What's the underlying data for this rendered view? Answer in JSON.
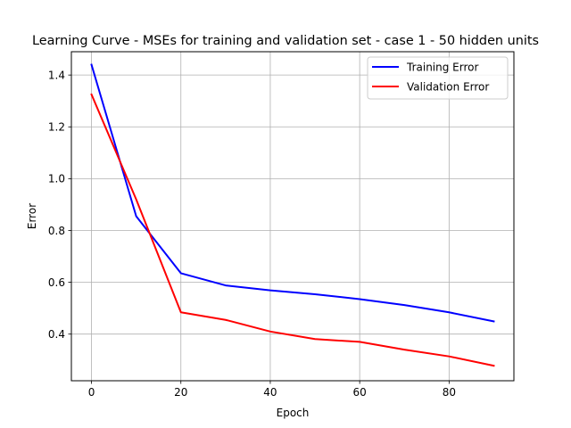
{
  "chart_data": {
    "type": "line",
    "title": "Learning Curve - MSEs for training and validation set - case 1 - 50 hidden units",
    "xlabel": "Epoch",
    "ylabel": "Error",
    "xlim": [
      -4.5,
      94.5
    ],
    "ylim": [
      0.22,
      1.49
    ],
    "xticks": [
      0,
      20,
      40,
      60,
      80
    ],
    "yticks": [
      0.4,
      0.6,
      0.8,
      1.0,
      1.2,
      1.4
    ],
    "xtick_labels": [
      "0",
      "20",
      "40",
      "60",
      "80"
    ],
    "ytick_labels": [
      "0.4",
      "0.6",
      "0.8",
      "1.0",
      "1.2",
      "1.4"
    ],
    "grid": true,
    "legend_position": "top-right",
    "x": [
      0,
      10,
      20,
      30,
      40,
      50,
      60,
      70,
      80,
      90
    ],
    "series": [
      {
        "name": "Training Error",
        "color": "#0000ff",
        "values": [
          1.44,
          0.855,
          0.635,
          0.588,
          0.569,
          0.554,
          0.535,
          0.512,
          0.484,
          0.449
        ]
      },
      {
        "name": "Validation Error",
        "color": "#ff0000",
        "values": [
          1.325,
          0.92,
          0.484,
          0.455,
          0.41,
          0.381,
          0.37,
          0.34,
          0.314,
          0.278
        ]
      }
    ]
  }
}
